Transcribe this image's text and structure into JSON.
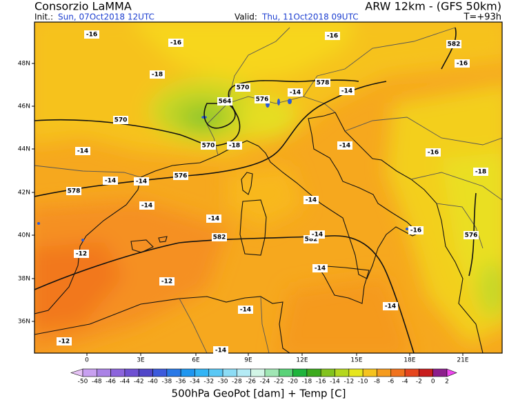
{
  "header": {
    "title": "Consorzio LaMMA",
    "init_label": "Init.:",
    "init": "Sun, 07Oct2018 12UTC",
    "valid_label": "Valid:",
    "valid": "Thu, 11Oct2018 09UTC",
    "model": "ARW 12km - (GFS 50km)",
    "lead": "T=+93h"
  },
  "map": {
    "lat_labels": [
      "48N",
      "46N",
      "44N",
      "42N",
      "40N",
      "38N",
      "36N"
    ],
    "lon_labels": [
      "0",
      "3E",
      "6E",
      "9E",
      "12E",
      "15E",
      "18E",
      "21E"
    ],
    "contour_labels": [
      -16,
      -16,
      -16,
      582,
      -16,
      -18,
      570,
      578,
      -14,
      -14,
      564,
      576,
      570,
      570,
      -18,
      -14,
      -14,
      -16,
      -18,
      576,
      -14,
      -14,
      578,
      -14,
      -14,
      -14,
      582,
      582,
      -14,
      -16,
      576,
      -12,
      -12,
      -14,
      -14,
      -14,
      -12,
      -14
    ]
  },
  "colorbar": {
    "labels": [
      -50,
      -48,
      -46,
      -44,
      -42,
      -40,
      -38,
      -36,
      -34,
      -32,
      -30,
      -28,
      -26,
      -24,
      -22,
      -20,
      -18,
      -16,
      -14,
      -12,
      -10,
      -8,
      -6,
      -4,
      -2,
      0,
      2
    ],
    "colors": [
      "#e6c3f5",
      "#c8a0f0",
      "#aa82e6",
      "#8c64dc",
      "#6e50d2",
      "#5046c8",
      "#3c5adc",
      "#2878e6",
      "#1e96f0",
      "#32b4f5",
      "#5ac8f5",
      "#8cdcf5",
      "#b4ebf5",
      "#d2f5e6",
      "#a0e6b4",
      "#5ad278",
      "#1eb43c",
      "#3caa1e",
      "#82c31e",
      "#b4d71e",
      "#e6e61e",
      "#f5c31e",
      "#f59b1e",
      "#f0731e",
      "#e6461e",
      "#c81e1e",
      "#8c1e8c",
      "#f046f0"
    ],
    "title": "500hPa GeoPot [dam] + Temp [C]"
  }
}
